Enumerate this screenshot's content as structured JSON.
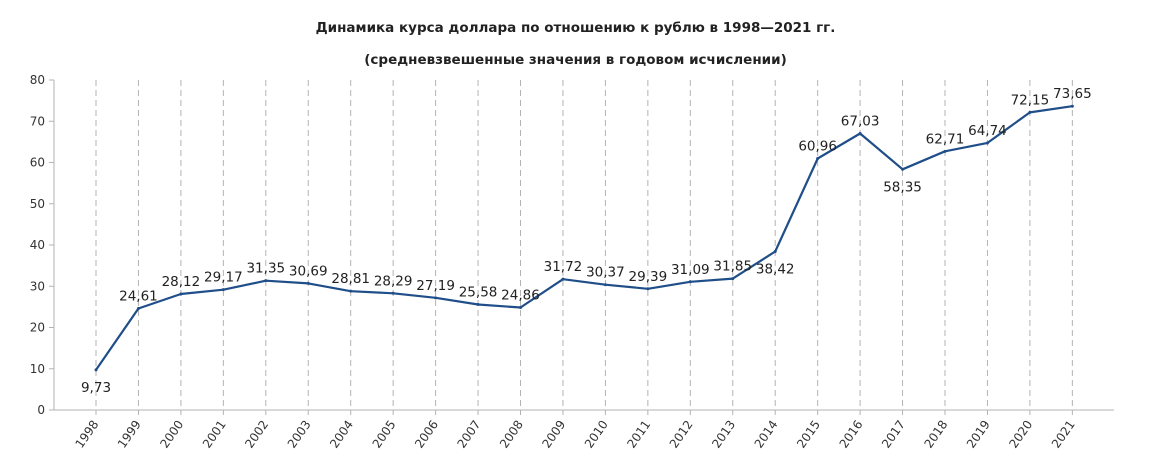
{
  "chart_data": {
    "type": "line",
    "title": "Динамика курса доллара по отношению к рублю в 1998—2021 гг.",
    "subtitle": "(средневзвешенные значения в годовом исчислении)",
    "xlabel": "",
    "ylabel": "",
    "ylim": [
      0,
      80
    ],
    "yticks": [
      "0",
      "10",
      "20",
      "30",
      "40",
      "50",
      "60",
      "70",
      "80"
    ],
    "grid": "vertical-dashed",
    "legend": "none",
    "color": "#1f4e89",
    "categories": [
      "1998",
      "1999",
      "2000",
      "2001",
      "2002",
      "2003",
      "2004",
      "2005",
      "2006",
      "2007",
      "2008",
      "2009",
      "2010",
      "2011",
      "2012",
      "2013",
      "2014",
      "2015",
      "2016",
      "2017",
      "2018",
      "2019",
      "2020",
      "2021"
    ],
    "values": [
      9.73,
      24.61,
      28.12,
      29.17,
      31.35,
      30.69,
      28.81,
      28.29,
      27.19,
      25.58,
      24.86,
      31.72,
      30.37,
      29.39,
      31.09,
      31.85,
      38.42,
      60.96,
      67.03,
      58.35,
      62.71,
      64.74,
      72.15,
      73.65
    ],
    "labels": [
      "9,73",
      "24,61",
      "28,12",
      "29,17",
      "31,35",
      "30,69",
      "28,81",
      "28,29",
      "27,19",
      "25,58",
      "24,86",
      "31,72",
      "30,37",
      "29,39",
      "31,09",
      "31,85",
      "38,42",
      "60,96",
      "67,03",
      "58,35",
      "62,71",
      "64,74",
      "72,15",
      "73,65"
    ]
  }
}
